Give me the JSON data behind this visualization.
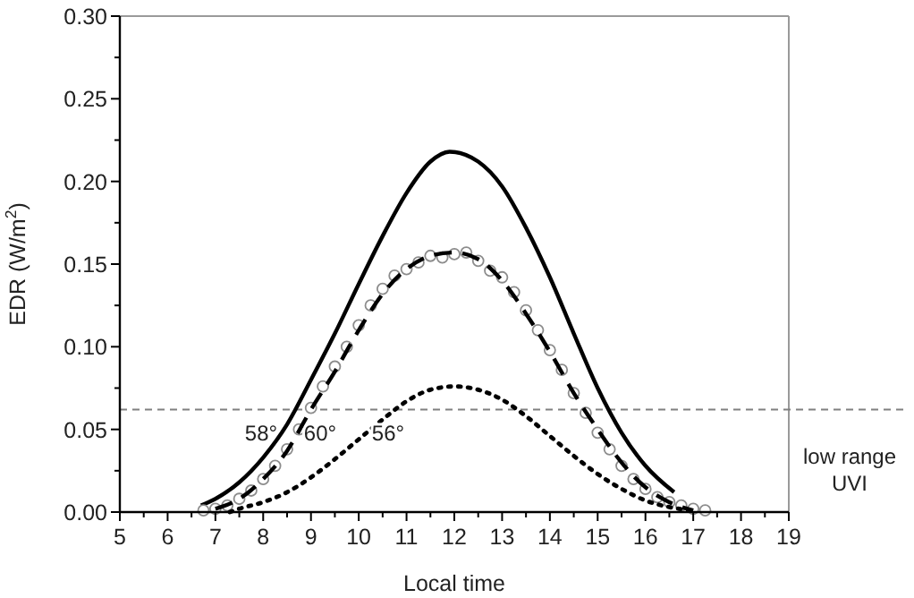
{
  "chart_data": {
    "type": "line",
    "xlabel": "Local time",
    "ylabel": "EDR (W/m$^{2}$)",
    "xlim": [
      5,
      19
    ],
    "xticks": [
      5,
      6,
      7,
      8,
      9,
      10,
      11,
      12,
      13,
      14,
      15,
      16,
      17,
      18,
      19
    ],
    "ylim": [
      0,
      0.3
    ],
    "yticks": [
      {
        "value": 0,
        "label": "0.00"
      },
      {
        "value": 0.05,
        "label": "0.05"
      },
      {
        "value": 0.1,
        "label": "0.10"
      },
      {
        "value": 0.15,
        "label": "0.15"
      },
      {
        "value": 0.2,
        "label": "0.20"
      },
      {
        "value": 0.25,
        "label": "0.25"
      },
      {
        "value": 0.3,
        "label": "0.30"
      }
    ],
    "grid": false,
    "series": [
      {
        "line_style": "solid",
        "marker": "none",
        "color": "#000000",
        "x": [
          6.7,
          7,
          7.5,
          8,
          8.5,
          9,
          9.5,
          10,
          10.5,
          11,
          11.5,
          11.9,
          12.5,
          13,
          13.5,
          14,
          14.5,
          15,
          15.5,
          16,
          16.6
        ],
        "values": [
          0.004,
          0.008,
          0.018,
          0.033,
          0.053,
          0.08,
          0.108,
          0.138,
          0.167,
          0.193,
          0.212,
          0.218,
          0.212,
          0.197,
          0.172,
          0.142,
          0.108,
          0.075,
          0.048,
          0.028,
          0.012
        ]
      },
      {
        "type": "scatter",
        "marker": "circle",
        "color": "#8c8c8c",
        "x": [
          6.75,
          7,
          7.25,
          7.5,
          7.75,
          8,
          8.25,
          8.5,
          8.75,
          9,
          9.25,
          9.5,
          9.75,
          10,
          10.25,
          10.5,
          10.75,
          11,
          11.25,
          11.5,
          11.75,
          12,
          12.25,
          12.5,
          12.75,
          13,
          13.25,
          13.5,
          13.75,
          14,
          14.25,
          14.5,
          14.75,
          15,
          15.25,
          15.5,
          15.75,
          16,
          16.25,
          16.5,
          16.75,
          17,
          17.25
        ],
        "values": [
          0.001,
          0.002,
          0.004,
          0.008,
          0.013,
          0.02,
          0.028,
          0.038,
          0.05,
          0.063,
          0.076,
          0.088,
          0.1,
          0.113,
          0.125,
          0.135,
          0.143,
          0.147,
          0.151,
          0.155,
          0.154,
          0.156,
          0.157,
          0.152,
          0.146,
          0.142,
          0.133,
          0.122,
          0.11,
          0.098,
          0.086,
          0.072,
          0.06,
          0.048,
          0.038,
          0.028,
          0.02,
          0.014,
          0.009,
          0.006,
          0.004,
          0.002,
          0.001
        ]
      },
      {
        "line_style": "dashed",
        "marker": "none",
        "color": "#000000",
        "x": [
          7,
          7.5,
          8,
          8.5,
          9,
          9.5,
          10,
          10.5,
          11,
          11.5,
          12,
          12.5,
          13,
          13.5,
          14,
          14.5,
          15,
          15.5,
          16,
          16.5,
          17
        ],
        "values": [
          0.002,
          0.008,
          0.02,
          0.037,
          0.062,
          0.085,
          0.11,
          0.132,
          0.147,
          0.155,
          0.157,
          0.153,
          0.14,
          0.12,
          0.097,
          0.072,
          0.05,
          0.03,
          0.015,
          0.006,
          0.001
        ]
      },
      {
        "line_style": "dotted",
        "marker": "none",
        "color": "#000000",
        "x": [
          7.3,
          7.5,
          8,
          8.5,
          9,
          9.5,
          10,
          10.5,
          11,
          11.5,
          12,
          12.5,
          13,
          13.5,
          14,
          14.5,
          15,
          15.5,
          16,
          16.5,
          17
        ],
        "values": [
          0,
          0.002,
          0.006,
          0.012,
          0.021,
          0.032,
          0.044,
          0.056,
          0.067,
          0.074,
          0.076,
          0.074,
          0.068,
          0.058,
          0.046,
          0.034,
          0.023,
          0.014,
          0.007,
          0.003,
          0.001
        ]
      }
    ],
    "ref_lines": [
      {
        "axis": "y",
        "value": 0.062,
        "label": "low range UVI",
        "color": "#808080",
        "line_style": "dashed"
      }
    ],
    "annotations": [
      "58°",
      "60°",
      "56°"
    ]
  }
}
